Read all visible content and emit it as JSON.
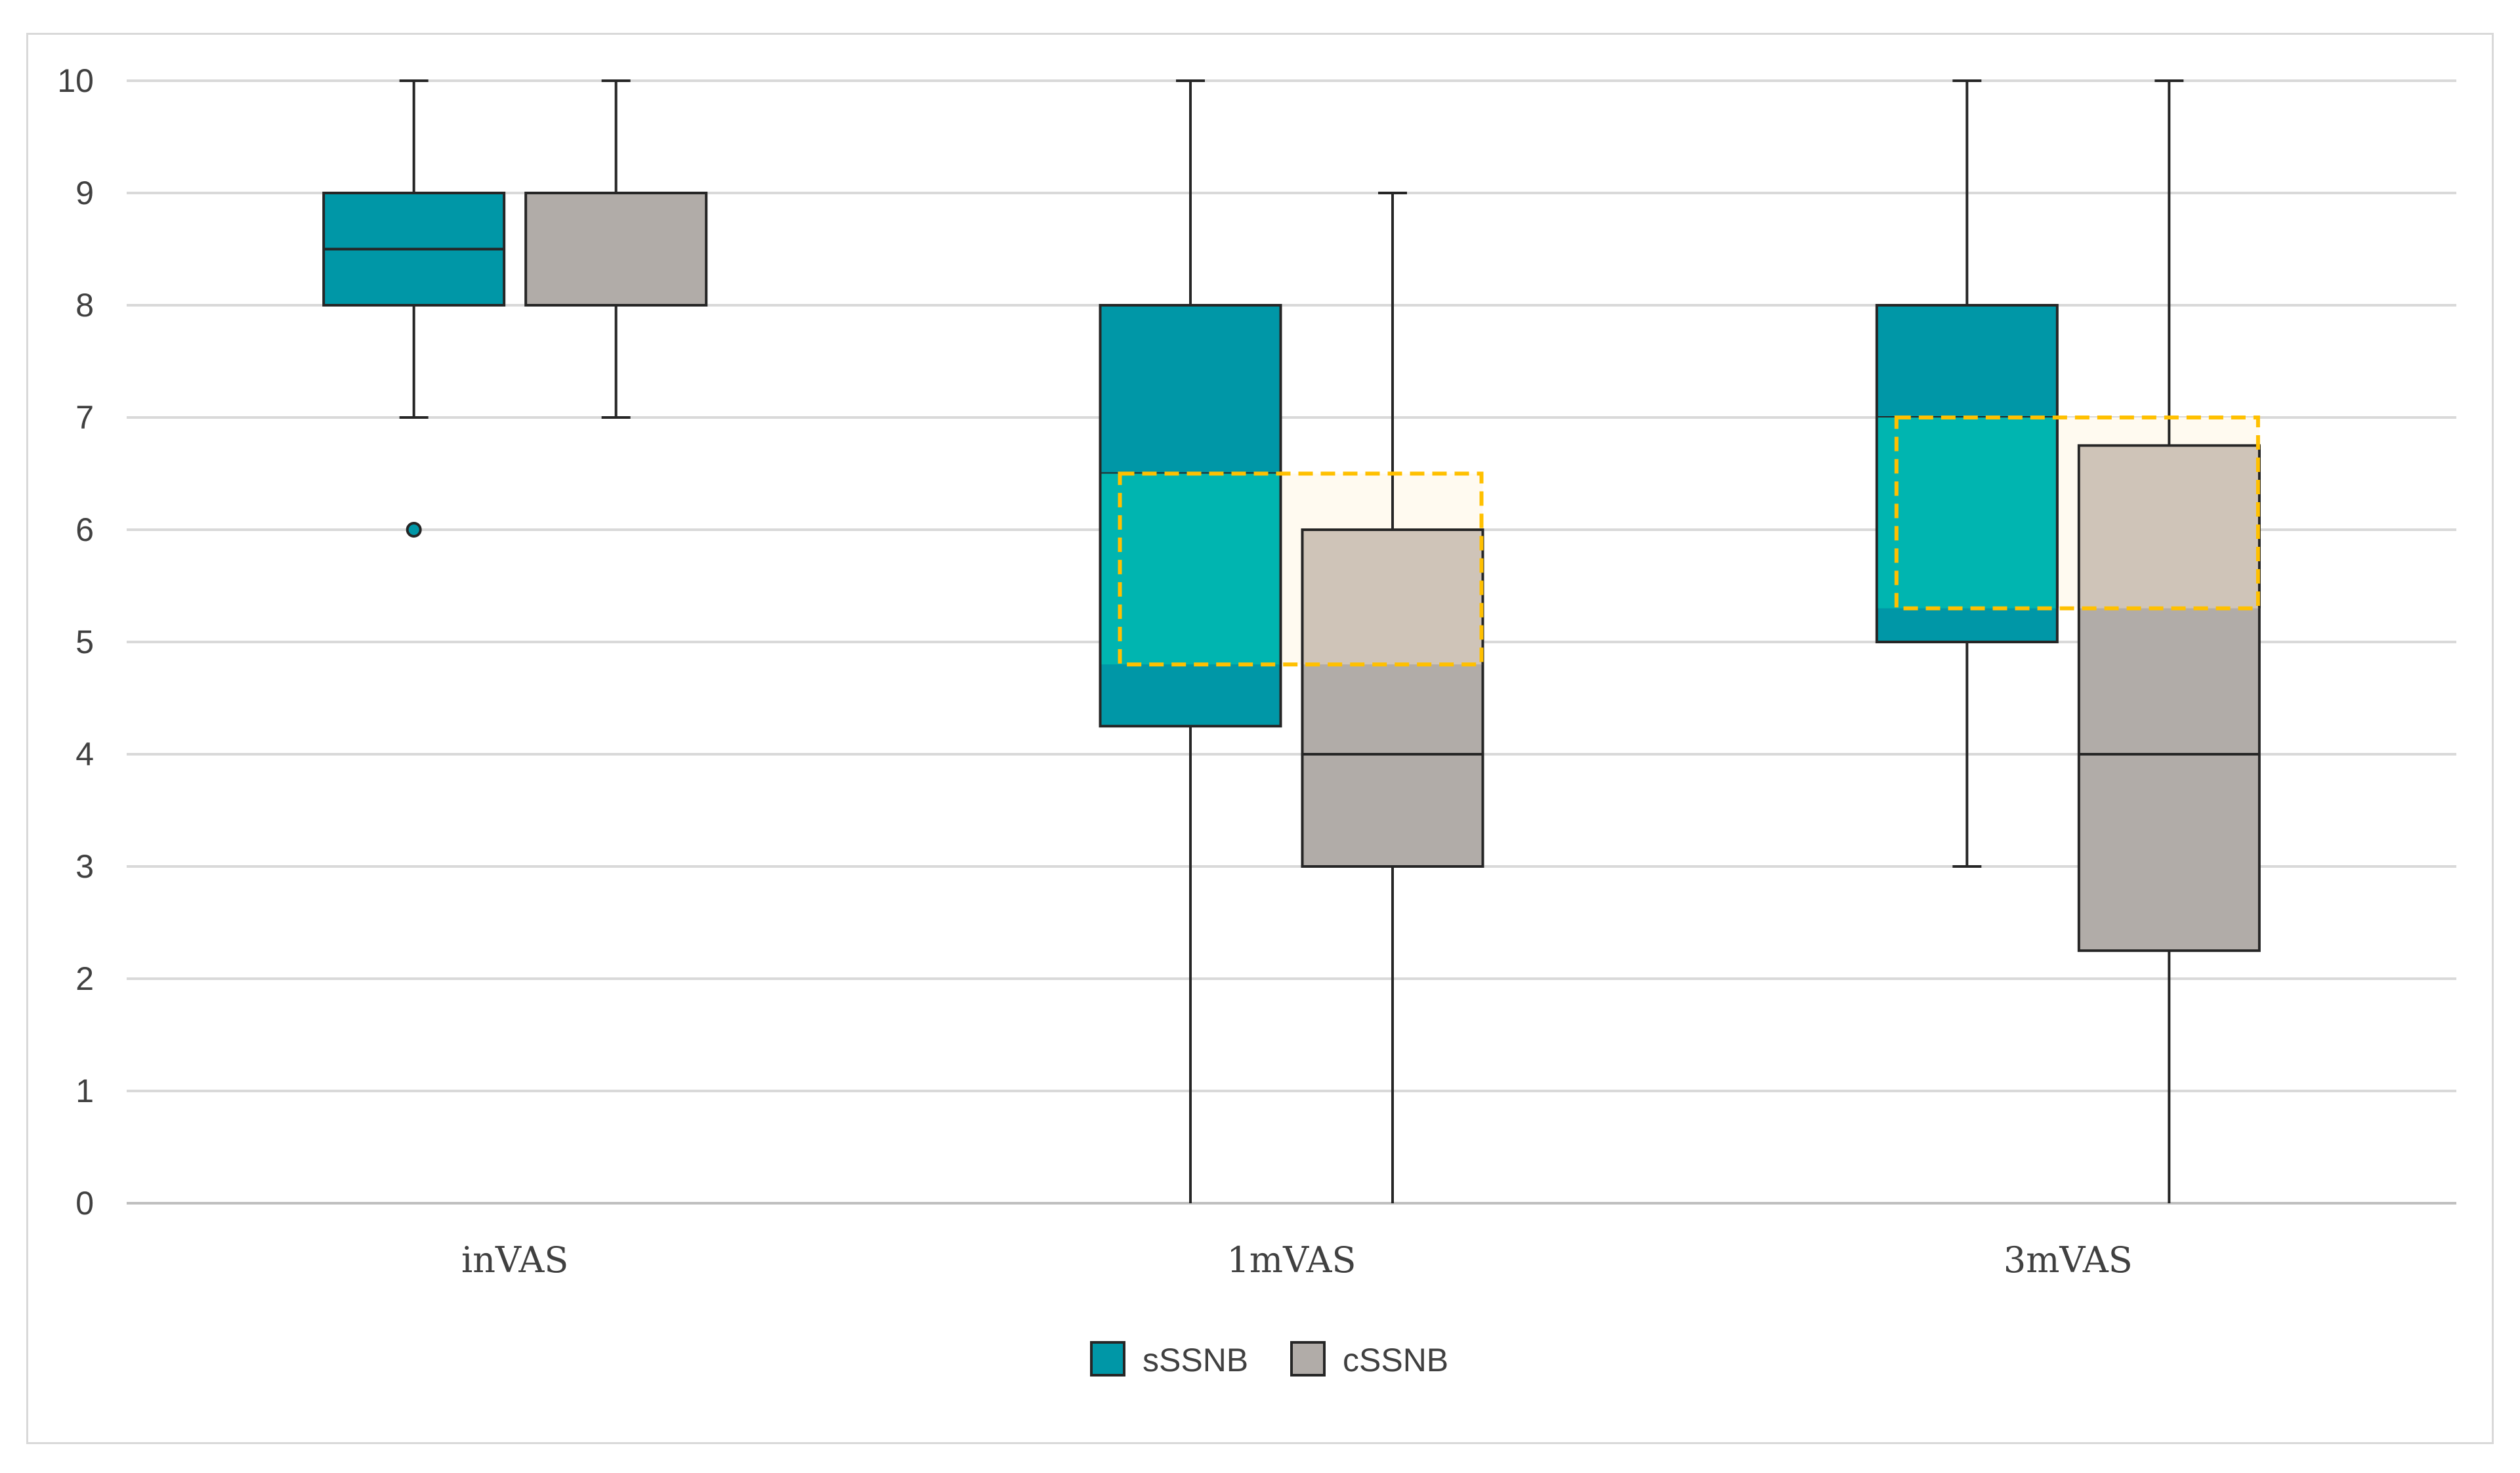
{
  "chart_data": {
    "type": "box",
    "title": "",
    "xlabel": "",
    "ylabel": "",
    "ylim": [
      0,
      10
    ],
    "yticks": [
      0,
      1,
      2,
      3,
      4,
      5,
      6,
      7,
      8,
      9,
      10
    ],
    "grid": true,
    "legend_position": "bottom-center",
    "categories": [
      "inVAS",
      "1mVAS",
      "3mVAS"
    ],
    "series": [
      {
        "name": "sSSNB",
        "color": "#0097a7",
        "boxes": [
          {
            "min": 7,
            "q1": 8,
            "median": 8.5,
            "q3": 9,
            "max": 10,
            "outliers": [
              6
            ]
          },
          {
            "min": 0,
            "q1": 4.25,
            "median": 6.5,
            "q3": 8,
            "max": 10,
            "outliers": []
          },
          {
            "min": 3,
            "q1": 5,
            "median": 7,
            "q3": 8,
            "max": 10,
            "outliers": []
          }
        ]
      },
      {
        "name": "cSSNB",
        "color": "#b1aca8",
        "boxes": [
          {
            "min": 7,
            "q1": 8,
            "median": 9,
            "q3": 9,
            "max": 10,
            "outliers": []
          },
          {
            "min": 0,
            "q1": 3,
            "median": 4,
            "q3": 6,
            "max": 9,
            "outliers": []
          },
          {
            "min": 0,
            "q1": 2.25,
            "median": 4,
            "q3": 6.75,
            "max": 10,
            "outliers": []
          }
        ]
      }
    ],
    "highlight_regions": [
      {
        "category": "1mVAS",
        "y_from": 4.8,
        "y_to": 6.5,
        "color": "#ffc000"
      },
      {
        "category": "3mVAS",
        "y_from": 5.3,
        "y_to": 7.0,
        "color": "#ffc000"
      }
    ],
    "colors": {
      "highlight_fill_teal": "#00b5b0",
      "highlight_fill_gray": "#cfc4b8",
      "highlight_fill_bg": "#fffaf0"
    }
  }
}
